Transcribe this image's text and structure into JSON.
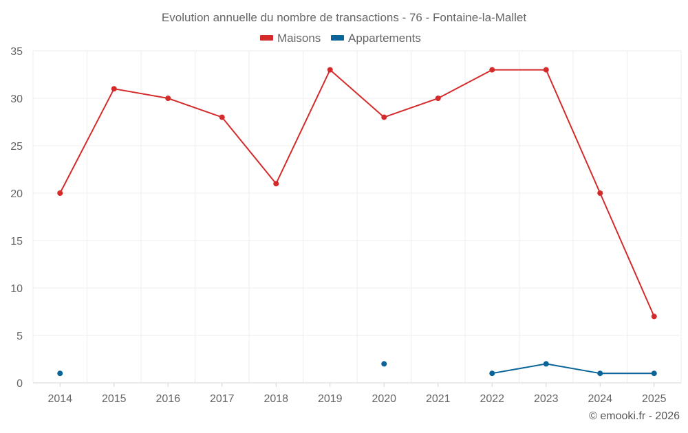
{
  "chart_data": {
    "type": "line",
    "title": "Evolution annuelle du nombre de transactions - 76 - Fontaine-la-Mallet",
    "xlabel": "",
    "ylabel": "",
    "categories": [
      "2014",
      "2015",
      "2016",
      "2017",
      "2018",
      "2019",
      "2020",
      "2021",
      "2022",
      "2023",
      "2024",
      "2025"
    ],
    "ylim": [
      0,
      35
    ],
    "yticks": [
      "0",
      "5",
      "10",
      "15",
      "20",
      "25",
      "30",
      "35"
    ],
    "grid": true,
    "legend_position": "top-center",
    "series": [
      {
        "name": "Maisons",
        "color": "#d42a2a",
        "values": [
          20,
          31,
          30,
          28,
          21,
          33,
          28,
          30,
          33,
          33,
          20,
          7
        ]
      },
      {
        "name": "Appartements",
        "color": "#0b6499",
        "values": [
          1,
          null,
          null,
          null,
          null,
          null,
          2,
          null,
          1,
          2,
          1,
          1
        ]
      }
    ]
  },
  "credit": "© emooki.fr - 2026"
}
